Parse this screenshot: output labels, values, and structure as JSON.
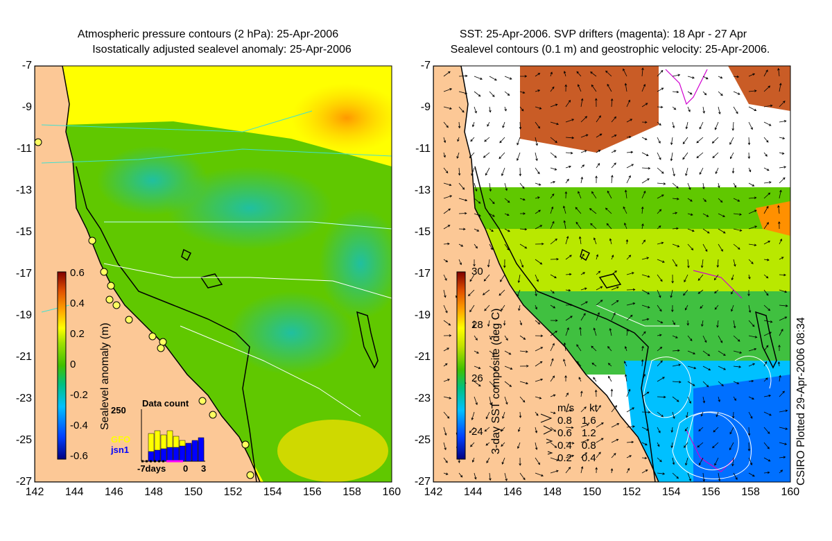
{
  "left_panel": {
    "title_line1": "Atmospheric pressure contours (2 hPa): 25-Apr-2006",
    "title_line2": "Isostatically adjusted sealevel anomaly: 25-Apr-2006",
    "colorbar": {
      "label": "Sealevel anomaly (m)",
      "ticks": [
        "0.6",
        "0.4",
        "0.2",
        "0",
        "-0.2",
        "-0.4",
        "-0.6"
      ],
      "range": [
        -0.6,
        0.6
      ]
    },
    "data_count": {
      "title": "Data count",
      "max_label": "250",
      "x_label": "-7days",
      "x_ticks": [
        "0",
        "3"
      ],
      "series": [
        {
          "name": "GFO",
          "color": "#ffff00"
        },
        {
          "name": "jsn1",
          "color": "#0000ff"
        }
      ]
    }
  },
  "right_panel": {
    "title_line1": "SST: 25-Apr-2006. SVP drifters (magenta): 18 Apr - 27 Apr",
    "title_line2": "Sealevel contours (0.1 m) and geostrophic velocity: 25-Apr-2006.",
    "colorbar": {
      "label": "3-day SST composite (deg C)",
      "ticks": [
        "30",
        "28",
        "26",
        "24"
      ],
      "range": [
        23,
        30
      ]
    },
    "velocity_legend": {
      "header_ms": "m/s",
      "header_kt": "kt",
      "rows": [
        {
          "ms": "0.8",
          "kt": "1.6"
        },
        {
          "ms": "0.6",
          "kt": "1.2"
        },
        {
          "ms": "0.4",
          "kt": "0.8"
        },
        {
          "ms": "0.2",
          "kt": "0.4"
        }
      ]
    }
  },
  "axes": {
    "y_ticks": [
      "-7",
      "-9",
      "-11",
      "-13",
      "-15",
      "-17",
      "-19",
      "-21",
      "-23",
      "-25",
      "-27"
    ],
    "x_ticks": [
      "142",
      "144",
      "146",
      "148",
      "150",
      "152",
      "154",
      "156",
      "158",
      "160"
    ]
  },
  "credit": "CSIRO Plotted 29-Apr-2006 08:34",
  "colors": {
    "land": "#fcc896",
    "sst_bar": [
      "#000080",
      "#0040ff",
      "#00c0ff",
      "#00c080",
      "#40c000",
      "#c0e000",
      "#ffff00",
      "#ffa000",
      "#e05000",
      "#800000"
    ],
    "sla_bar": [
      "#000080",
      "#0040ff",
      "#00c0ff",
      "#00c080",
      "#40c000",
      "#a0e000",
      "#ffff00",
      "#ffa000",
      "#e05000",
      "#800000"
    ]
  }
}
